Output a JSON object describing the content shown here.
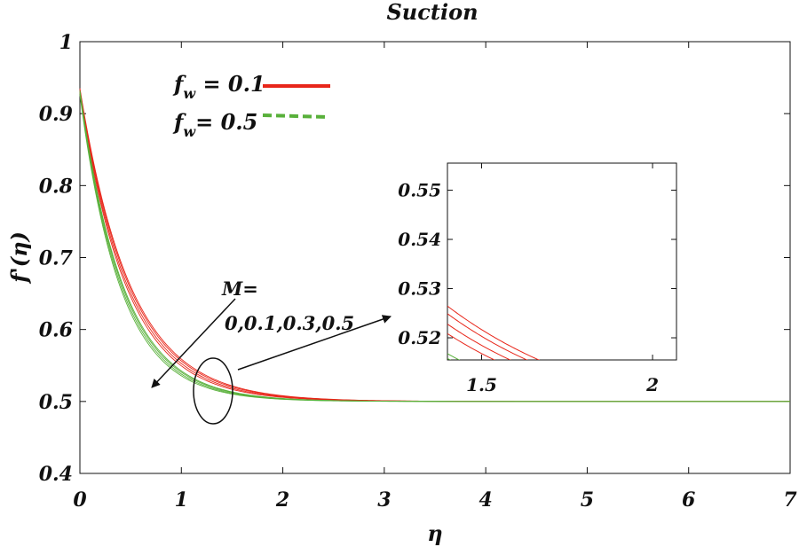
{
  "chart_data": {
    "type": "line",
    "title": "Suction",
    "xlabel": "η",
    "ylabel": "f'(η)",
    "xlim": [
      0,
      7
    ],
    "ylim": [
      0.4,
      1.0
    ],
    "xticks": [
      0,
      1,
      2,
      3,
      4,
      5,
      6,
      7
    ],
    "xtick_labels": [
      "0",
      "1",
      "2",
      "3",
      "4",
      "5",
      "6",
      "7"
    ],
    "yticks": [
      0.4,
      0.5,
      0.6,
      0.7,
      0.8,
      0.9,
      1.0
    ],
    "ytick_labels": [
      "0.4",
      "0.5",
      "0.6",
      "0.7",
      "0.8",
      "0.9",
      "1"
    ],
    "model": "f'(η) = 0.5 + A·exp(-k·η)",
    "series": [
      {
        "name": "f_w = 0.1, M = 0",
        "group": "fw01",
        "color": "#e8261a",
        "A": 0.435,
        "k": 2.0
      },
      {
        "name": "f_w = 0.1, M = 0.1",
        "group": "fw01",
        "color": "#e8261a",
        "A": 0.433,
        "k": 2.04
      },
      {
        "name": "f_w = 0.1, M = 0.3",
        "group": "fw01",
        "color": "#e8261a",
        "A": 0.431,
        "k": 2.1
      },
      {
        "name": "f_w = 0.1, M = 0.5",
        "group": "fw01",
        "color": "#e8261a",
        "A": 0.429,
        "k": 2.16
      },
      {
        "name": "f_w = 0.5, M = 0",
        "group": "fw05",
        "color": "#58b03a",
        "A": 0.432,
        "k": 2.32
      },
      {
        "name": "f_w = 0.5, M = 0.1",
        "group": "fw05",
        "color": "#58b03a",
        "A": 0.43,
        "k": 2.36
      },
      {
        "name": "f_w = 0.5, M = 0.3",
        "group": "fw05",
        "color": "#58b03a",
        "A": 0.428,
        "k": 2.42
      },
      {
        "name": "f_w = 0.5, M = 0.5",
        "group": "fw05",
        "color": "#58b03a",
        "A": 0.426,
        "k": 2.48
      }
    ],
    "legend": {
      "placement": "top-left",
      "entries": [
        {
          "label": "f",
          "sub": "w",
          "rest": " = 0.1",
          "color": "#e8261a",
          "style": "solid"
        },
        {
          "label": "f",
          "sub": "w",
          "rest": "= 0.5",
          "color": "#58b03a",
          "style": "dashed"
        }
      ]
    },
    "annotation": {
      "line1": "M=",
      "line2": "0,0.1,0.3,0.5",
      "circle_center": [
        1.35,
        0.5285
      ]
    },
    "inset": {
      "xlim": [
        1.4,
        2.07
      ],
      "ylim": [
        0.5155,
        0.5555
      ],
      "xticks": [
        1.5,
        2
      ],
      "xtick_labels": [
        "1.5",
        "2"
      ],
      "yticks": [
        0.52,
        0.53,
        0.54,
        0.55
      ],
      "ytick_labels": [
        "0.52",
        "0.53",
        "0.54",
        "0.55"
      ]
    }
  }
}
